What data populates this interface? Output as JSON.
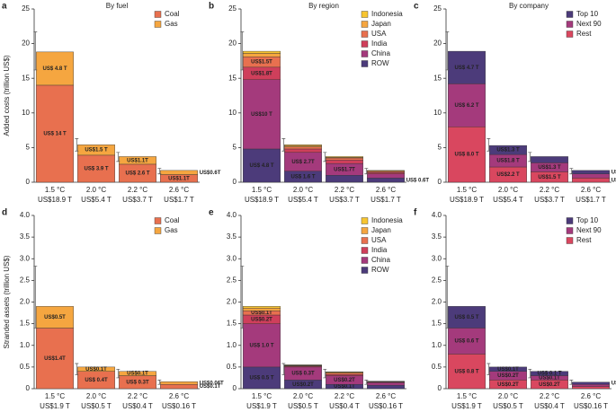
{
  "chart_data": [
    {
      "type": "bar",
      "panel": "a",
      "title": "By fuel",
      "ylabel": "Added costs (trillion US$)",
      "ylim": [
        0,
        25
      ],
      "yticks": [
        0,
        5,
        10,
        15,
        20,
        25
      ],
      "legend_reversed": false,
      "categories": [
        "1.5 °C",
        "2.0 °C",
        "2.2 °C",
        "2.6 °C"
      ],
      "totals": [
        "US$18.9 T",
        "US$5.4 T",
        "US$3.7 T",
        "US$1.7 T"
      ],
      "error_low": [
        16.2,
        4.5,
        3.0,
        1.2
      ],
      "error_high": [
        21.7,
        6.3,
        4.3,
        2.0
      ],
      "series": [
        {
          "name": "Coal",
          "color": "#e8704f",
          "label_color": "#111",
          "values": [
            14,
            3.9,
            2.6,
            1.1
          ],
          "value_labels": [
            "US$ 14 T",
            "US$ 3.9 T",
            "US$ 2.6 T",
            "US$1.1T"
          ]
        },
        {
          "name": "Gas",
          "color": "#f5a640",
          "label_color": "#111",
          "values": [
            4.8,
            1.5,
            1.1,
            0.6
          ],
          "value_labels": [
            "US$ 4.8 T",
            "US$1.5 T",
            "US$1.1T",
            "US$0.6T"
          ]
        }
      ]
    },
    {
      "type": "bar",
      "panel": "b",
      "title": "By region",
      "ylim": [
        0,
        25
      ],
      "yticks": [
        0,
        5,
        10,
        15,
        20,
        25
      ],
      "legend_reversed": true,
      "categories": [
        "1.5 °C",
        "2.0 °C",
        "2.2 °C",
        "2.6 °C"
      ],
      "totals": [
        "US$18.9 T",
        "US$5.4 T",
        "US$3.7 T",
        "US$1.7 T"
      ],
      "error_low": [
        16.2,
        4.5,
        3.0,
        1.2
      ],
      "error_high": [
        21.7,
        6.3,
        4.3,
        2.0
      ],
      "series": [
        {
          "name": "ROW",
          "color": "#4c3b7a",
          "label_color": "#fff",
          "values": [
            4.8,
            1.6,
            1.0,
            0.6
          ],
          "value_labels": [
            "US$ 4.8 T",
            "US$ 1.6 T",
            null,
            "US$ 0.6T"
          ]
        },
        {
          "name": "China",
          "color": "#a43a7c",
          "label_color": "#fff",
          "values": [
            10,
            2.7,
            1.7,
            0.6
          ],
          "value_labels": [
            "US$10 T",
            "US$ 2.7T",
            "US$1.7T",
            null
          ]
        },
        {
          "name": "India",
          "color": "#cf3f5b",
          "label_color": "#fff",
          "values": [
            1.8,
            0.5,
            0.5,
            0.2
          ],
          "value_labels": [
            "US$1.8T",
            null,
            null,
            null
          ]
        },
        {
          "name": "USA",
          "color": "#e8704f",
          "label_color": "#fff",
          "values": [
            1.5,
            0.3,
            0.3,
            0.15
          ],
          "value_labels": [
            "US$1.5T",
            null,
            null,
            null
          ]
        },
        {
          "name": "Japan",
          "color": "#f5a640",
          "label_color": "#111",
          "values": [
            0.5,
            0.2,
            0.1,
            0.1
          ],
          "value_labels": [
            null,
            null,
            null,
            null
          ]
        },
        {
          "name": "Indonesia",
          "color": "#f7c531",
          "label_color": "#111",
          "values": [
            0.3,
            0.1,
            0.1,
            0.05
          ],
          "value_labels": [
            null,
            null,
            null,
            null
          ]
        }
      ]
    },
    {
      "type": "bar",
      "panel": "c",
      "title": "By company",
      "ylim": [
        0,
        25
      ],
      "yticks": [
        0,
        5,
        10,
        15,
        20,
        25
      ],
      "legend_reversed": true,
      "categories": [
        "1.5 °C",
        "2.0 °C",
        "2.2 °C",
        "2.6 °C"
      ],
      "totals": [
        "US$18.9 T",
        "US$5.4 T",
        "US$3.7 T",
        "US$1.7 T"
      ],
      "error_low": [
        16.2,
        4.5,
        3.0,
        1.2
      ],
      "error_high": [
        21.7,
        6.3,
        4.3,
        2.0
      ],
      "series": [
        {
          "name": "Rest",
          "color": "#d9475f",
          "label_color": "#fff",
          "values": [
            8.0,
            2.2,
            1.5,
            0.6
          ],
          "value_labels": [
            "US$ 8.0 T",
            "US$2.2 T",
            "US$1.5 T",
            "US$ 0.6T"
          ]
        },
        {
          "name": "Next 90",
          "color": "#a43a7c",
          "label_color": "#fff",
          "values": [
            6.2,
            1.8,
            1.3,
            0.6
          ],
          "value_labels": [
            "US$ 6.2 T",
            "US$1.8 T",
            "US$1.3 T",
            null
          ]
        },
        {
          "name": "Top 10",
          "color": "#4c3b7a",
          "label_color": "#fff",
          "values": [
            4.7,
            1.3,
            0.9,
            0.5
          ],
          "value_labels": [
            "US$ 4.7 T",
            "US$1.3 T",
            null,
            "US$0.5 T"
          ]
        }
      ]
    },
    {
      "type": "bar",
      "panel": "d",
      "ylabel": "Stranded assets (trillion US$)",
      "ylim": [
        0,
        4
      ],
      "yticks": [
        0,
        0.5,
        {
          "value": 1,
          "label": "1.0"
        },
        1.5,
        {
          "value": 2,
          "label": "2.0"
        },
        2.5,
        {
          "value": 3,
          "label": "3.0"
        },
        3.5,
        {
          "value": 4,
          "label": "4.0"
        }
      ],
      "legend_reversed": false,
      "categories": [
        "1.5 °C",
        "2.0 °C",
        "2.2 °C",
        "2.6 °C"
      ],
      "totals": [
        "US$1.9 T",
        "US$0.5 T",
        "US$0.4 T",
        "US$0.16 T"
      ],
      "error_low": [
        1.4,
        0.32,
        0.25,
        0.1
      ],
      "error_high": [
        2.83,
        0.58,
        0.45,
        0.2
      ],
      "series": [
        {
          "name": "Coal",
          "color": "#e8704f",
          "label_color": "#111",
          "values": [
            1.4,
            0.4,
            0.3,
            0.1
          ],
          "value_labels": [
            "US$1.4T",
            "US$ 0.4T",
            "US$ 0.3T",
            "US$0.1T"
          ]
        },
        {
          "name": "Gas",
          "color": "#f5a640",
          "label_color": "#111",
          "values": [
            0.5,
            0.1,
            0.1,
            0.06
          ],
          "value_labels": [
            "US$0.5T",
            "US$0.1T",
            "US$0.1T",
            "US$0.06T"
          ]
        }
      ]
    },
    {
      "type": "bar",
      "panel": "e",
      "ylim": [
        0,
        4
      ],
      "yticks": [
        0,
        0.5,
        {
          "value": 1,
          "label": "1.0"
        },
        1.5,
        {
          "value": 2,
          "label": "2.0"
        },
        2.5,
        {
          "value": 3,
          "label": "3.0"
        },
        3.5,
        {
          "value": 4,
          "label": "4.0"
        }
      ],
      "legend_reversed": true,
      "categories": [
        "1.5 °C",
        "2.0 °C",
        "2.2 °C",
        "2.6 °C"
      ],
      "totals": [
        "US$1.9 T",
        "US$0.5 T",
        "US$0.4 T",
        "US$0.16 T"
      ],
      "error_low": [
        1.4,
        0.32,
        0.25,
        0.1
      ],
      "error_high": [
        2.83,
        0.58,
        0.45,
        0.2
      ],
      "series": [
        {
          "name": "ROW",
          "color": "#4c3b7a",
          "label_color": "#fff",
          "values": [
            0.5,
            0.2,
            0.1,
            0.08
          ],
          "value_labels": [
            "US$ 0.5 T",
            "US$0.2T",
            "US$0.1T",
            null
          ]
        },
        {
          "name": "China",
          "color": "#a43a7c",
          "label_color": "#fff",
          "values": [
            1.0,
            0.3,
            0.2,
            0.06
          ],
          "value_labels": [
            "US$ 1.0 T",
            "US$ 0.3T",
            "US$0.2T",
            null
          ]
        },
        {
          "name": "India",
          "color": "#cf3f5b",
          "label_color": "#fff",
          "values": [
            0.2,
            0.02,
            0.03,
            0.01
          ],
          "value_labels": [
            "US$0.2T",
            null,
            null,
            null
          ]
        },
        {
          "name": "USA",
          "color": "#e8704f",
          "label_color": "#fff",
          "values": [
            0.1,
            0.01,
            0.03,
            0.01
          ],
          "value_labels": [
            "US$0.1T",
            null,
            null,
            null
          ]
        },
        {
          "name": "Japan",
          "color": "#f5a640",
          "label_color": "#111",
          "values": [
            0.06,
            0.01,
            0.02,
            0.005
          ],
          "value_labels": [
            null,
            null,
            null,
            null
          ]
        },
        {
          "name": "Indonesia",
          "color": "#f7c531",
          "label_color": "#111",
          "values": [
            0.04,
            0.01,
            0.01,
            0.005
          ],
          "value_labels": [
            null,
            null,
            null,
            null
          ]
        }
      ]
    },
    {
      "type": "bar",
      "panel": "f",
      "ylim": [
        0,
        4
      ],
      "yticks": [
        0,
        0.5,
        {
          "value": 1,
          "label": "1.0"
        },
        1.5,
        {
          "value": 2,
          "label": "2.0"
        },
        2.5,
        {
          "value": 3,
          "label": "3.0"
        },
        3.5,
        {
          "value": 4,
          "label": "4.0"
        }
      ],
      "legend_reversed": true,
      "categories": [
        "1.5 °C",
        "2.0 °C",
        "2.2 °C",
        "2.6 °C"
      ],
      "totals": [
        "US$1.9 T",
        "US$0.5 T",
        "US$0.4 T",
        "US$0.16 T"
      ],
      "error_low": [
        1.4,
        0.32,
        0.25,
        0.1
      ],
      "error_high": [
        2.83,
        0.58,
        0.45,
        0.2
      ],
      "series": [
        {
          "name": "Rest",
          "color": "#d9475f",
          "label_color": "#fff",
          "values": [
            0.8,
            0.2,
            0.2,
            0.05
          ],
          "value_labels": [
            "US$ 0.8 T",
            "US$0.2T",
            "US$0.2T",
            null
          ]
        },
        {
          "name": "Next 90",
          "color": "#a43a7c",
          "label_color": "#fff",
          "values": [
            0.6,
            0.2,
            0.1,
            0.05
          ],
          "value_labels": [
            "US$ 0.6 T",
            "US$0.2T",
            "US$0.1T",
            null
          ]
        },
        {
          "name": "Top 10",
          "color": "#4c3b7a",
          "label_color": "#fff",
          "values": [
            0.5,
            0.1,
            0.1,
            0.05
          ],
          "value_labels": [
            "US$ 0.5 T",
            "US$0.1T",
            "US$ 0.1 T",
            "US$0.05 T"
          ]
        }
      ]
    }
  ]
}
